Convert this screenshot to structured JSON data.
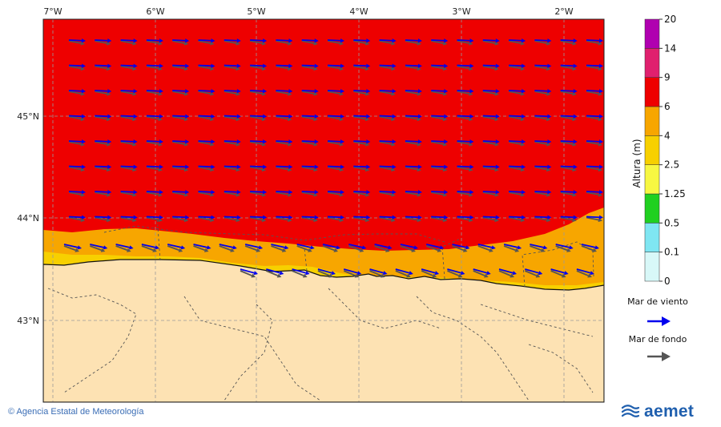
{
  "map": {
    "lon_labels": [
      "7°W",
      "6°W",
      "5°W",
      "4°W",
      "3°W",
      "2°W"
    ],
    "lat_labels": [
      "45°N",
      "44°N",
      "43°N"
    ]
  },
  "colorbar": {
    "title": "Altura (m)",
    "levels": [
      "0",
      "0.1",
      "0.5",
      "1.25",
      "2.5",
      "4",
      "6",
      "9",
      "14",
      "20"
    ],
    "colors": [
      "#d8f8f8",
      "#7fe6f2",
      "#20d020",
      "#f7f742",
      "#f7d000",
      "#f7a600",
      "#ee0000",
      "#e0206e",
      "#b000b0"
    ]
  },
  "legend": {
    "wind_sea_label": "Mar de viento",
    "wind_sea_color": "#0000ee",
    "swell_label": "Mar de fondo",
    "swell_color": "#555555"
  },
  "footer": {
    "copyright": "© Agencia Estatal de Meteorología",
    "brand": "aemet"
  },
  "colors": {
    "sea_red": "#ee0000",
    "sea_orange": "#f7a600",
    "sea_yellow": "#f7d000",
    "land": "#fde2b3"
  }
}
